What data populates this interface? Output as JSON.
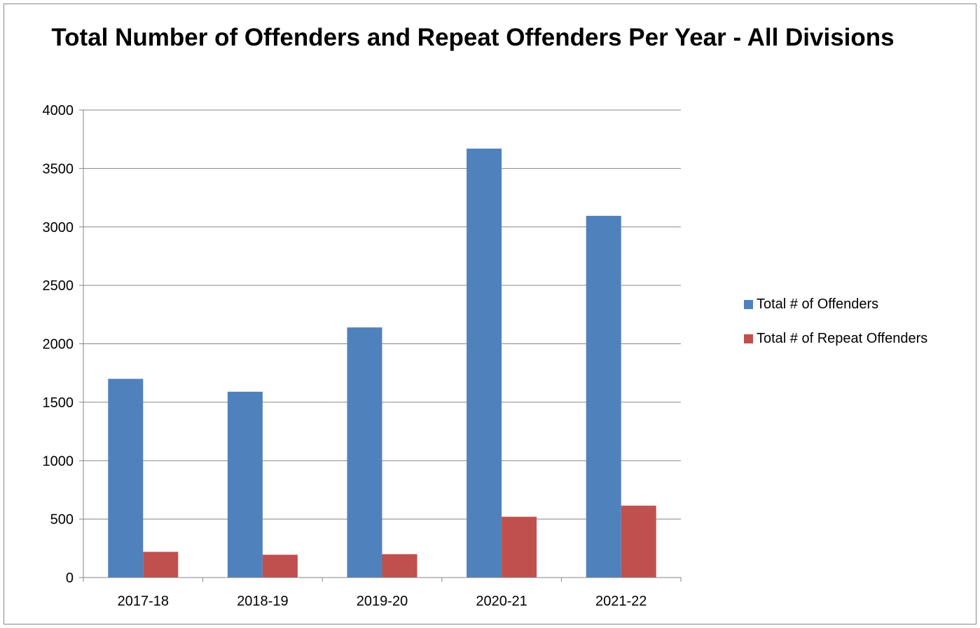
{
  "chart_data": {
    "type": "bar",
    "title": "Total Number of Offenders and Repeat Offenders Per Year - All Divisions",
    "xlabel": "",
    "ylabel": "",
    "categories": [
      "2017-18",
      "2018-19",
      "2019-20",
      "2020-21",
      "2021-22"
    ],
    "series": [
      {
        "name": "Total # of Offenders",
        "color": "#4F81BD",
        "values": [
          1700,
          1590,
          2140,
          3670,
          3095
        ]
      },
      {
        "name": "Total # of Repeat Offenders",
        "color": "#C0504D",
        "values": [
          220,
          195,
          200,
          520,
          615
        ]
      }
    ],
    "ylim": [
      0,
      4000
    ],
    "yticks": [
      0,
      500,
      1000,
      1500,
      2000,
      2500,
      3000,
      3500,
      4000
    ],
    "grid": true,
    "legend_position": "right"
  }
}
